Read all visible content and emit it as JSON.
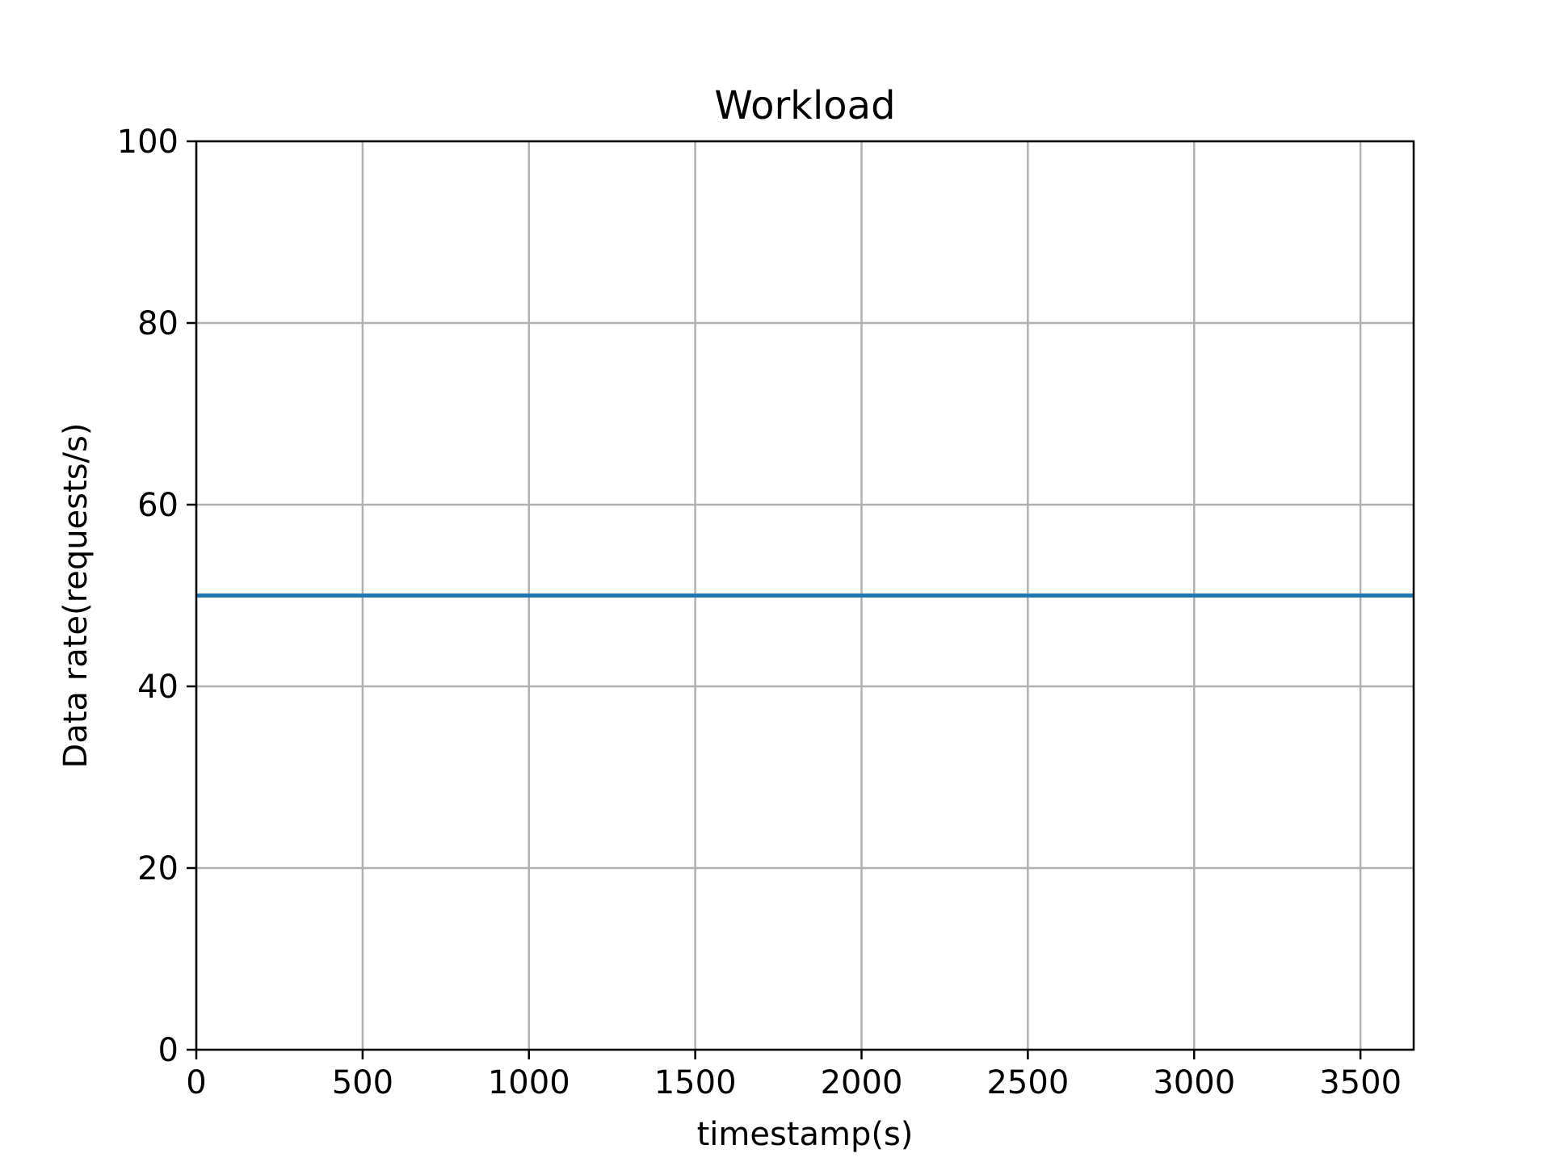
{
  "chart_data": {
    "type": "line",
    "title": "Workload",
    "xlabel": "timestamp(s)",
    "ylabel": "Data rate(requests/s)",
    "xlim": [
      0,
      3660
    ],
    "ylim": [
      0,
      100
    ],
    "x_ticks": [
      0,
      500,
      1000,
      1500,
      2000,
      2500,
      3000,
      3500
    ],
    "y_ticks": [
      0,
      20,
      40,
      60,
      80,
      100
    ],
    "grid": true,
    "legend": "none",
    "series": [
      {
        "color": "#1f77b4",
        "x": [
          0,
          3660
        ],
        "y": [
          50,
          50
        ]
      }
    ]
  }
}
